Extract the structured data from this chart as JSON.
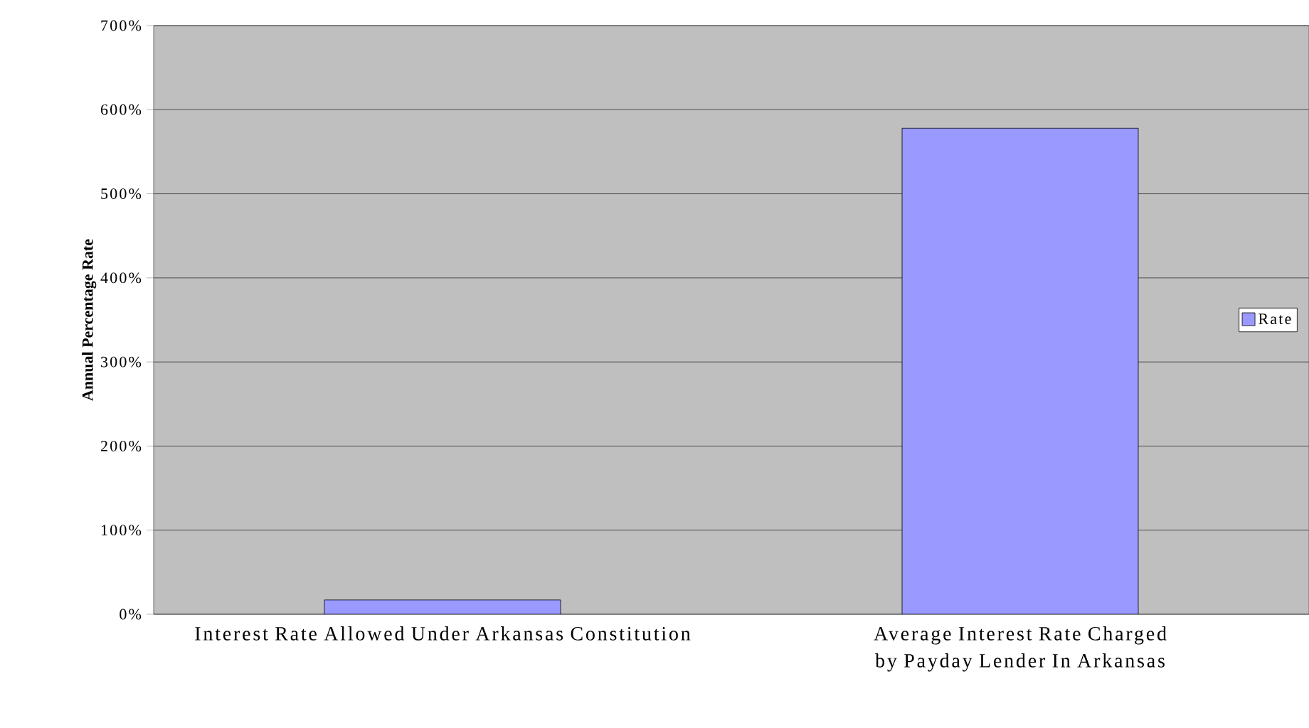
{
  "chart_data": {
    "type": "bar",
    "categories": [
      "Interest Rate Allowed Under Arkansas Constitution",
      "Average Interest Rate Charged by Payday Lender In Arkansas"
    ],
    "series": [
      {
        "name": "Rate",
        "color": "#9999ff",
        "values": [
          17,
          578
        ]
      }
    ],
    "ylabel": "Annual Percentage Rate",
    "ylim": [
      0,
      700
    ],
    "yticks": [
      {
        "value": 0,
        "label": "0%"
      },
      {
        "value": 100,
        "label": "100%"
      },
      {
        "value": 200,
        "label": "200%"
      },
      {
        "value": 300,
        "label": "300%"
      },
      {
        "value": 400,
        "label": "400%"
      },
      {
        "value": 500,
        "label": "500%"
      },
      {
        "value": 600,
        "label": "600%"
      },
      {
        "value": 700,
        "label": "700%"
      }
    ],
    "grid": "y",
    "legend": "right"
  }
}
